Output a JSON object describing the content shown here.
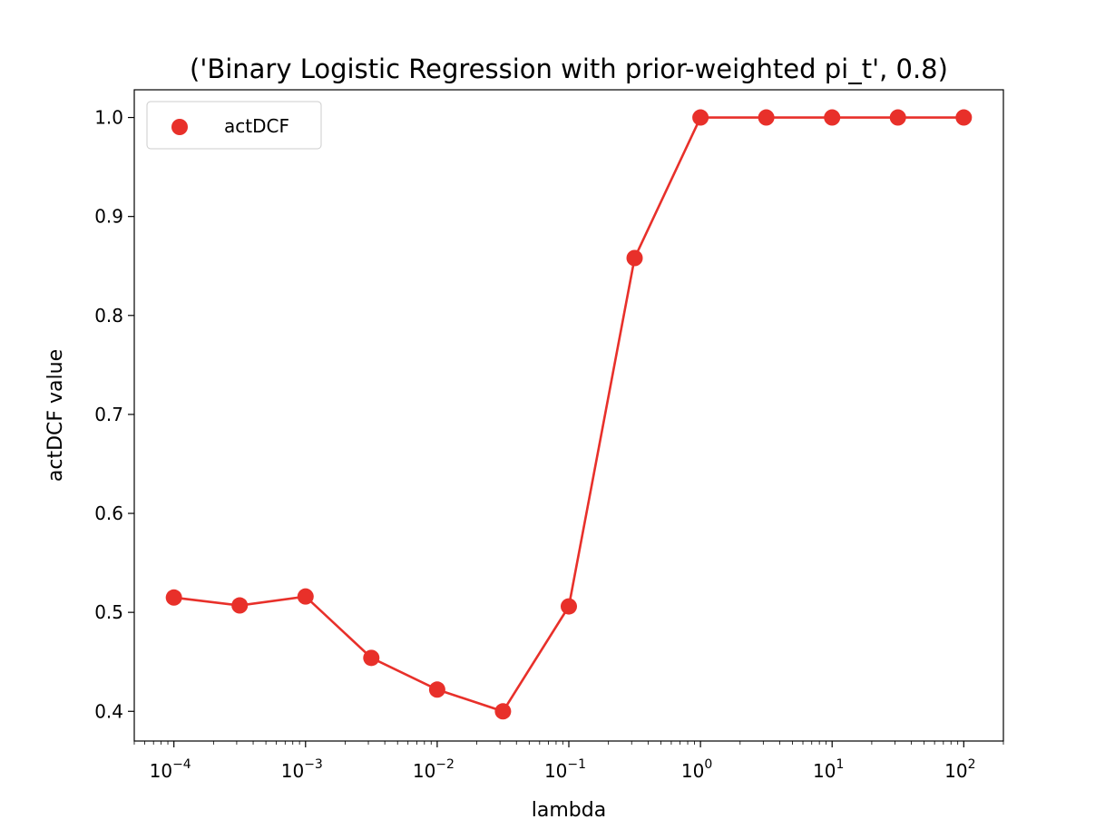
{
  "chart_data": {
    "type": "line",
    "title": "('Binary Logistic Regression with prior-weighted pi_t', 0.8)",
    "xlabel": "lambda",
    "ylabel": "actDCF value",
    "x_scale": "log",
    "xlim": [
      5e-05,
      200
    ],
    "ylim": [
      0.37,
      1.028
    ],
    "x_ticks": [
      {
        "value": 0.0001,
        "base": "10",
        "exp": "−4"
      },
      {
        "value": 0.001,
        "base": "10",
        "exp": "−3"
      },
      {
        "value": 0.01,
        "base": "10",
        "exp": "−2"
      },
      {
        "value": 0.1,
        "base": "10",
        "exp": "−1"
      },
      {
        "value": 1,
        "base": "10",
        "exp": "0"
      },
      {
        "value": 10,
        "base": "10",
        "exp": "1"
      },
      {
        "value": 100,
        "base": "10",
        "exp": "2"
      }
    ],
    "y_ticks": [
      "0.4",
      "0.5",
      "0.6",
      "0.7",
      "0.8",
      "0.9",
      "1.0"
    ],
    "grid": false,
    "legend_position": "top-left",
    "series": [
      {
        "name": "actDCF",
        "color": "#e8302a",
        "x": [
          0.0001,
          0.000316,
          0.001,
          0.00316,
          0.01,
          0.0316,
          0.1,
          0.316,
          1,
          3.16,
          10,
          31.6,
          100
        ],
        "y": [
          0.515,
          0.507,
          0.516,
          0.454,
          0.422,
          0.4,
          0.506,
          0.858,
          1.0,
          1.0,
          1.0,
          1.0,
          1.0
        ]
      }
    ]
  }
}
